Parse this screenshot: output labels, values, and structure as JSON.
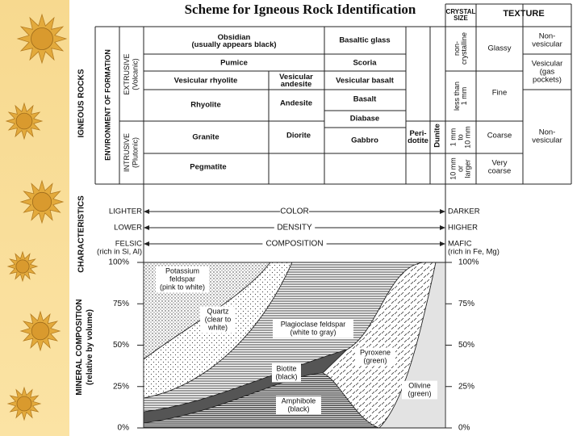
{
  "title": "Scheme for Igneous Rock Identification",
  "side_labels": {
    "igneous_rocks": "IGNEOUS ROCKS",
    "environment": "ENVIRONMENT OF FORMATION",
    "extrusive": [
      "EXTRUSIVE",
      "(Volcanic)"
    ],
    "intrusive": [
      "INTRUSIVE",
      "(Plutonic)"
    ],
    "characteristics": "CHARACTERISTICS",
    "mineral_composition": [
      "MINERAL COMPOSITION",
      "(relative by volume)"
    ]
  },
  "headers": {
    "crystal_size": [
      "CRYSTAL",
      "SIZE"
    ],
    "texture": "TEXTURE"
  },
  "rocks": {
    "obsidian": [
      "Obsidian",
      "(usually appears black)"
    ],
    "basaltic_glass": "Basaltic glass",
    "pumice": "Pumice",
    "scoria": "Scoria",
    "vesicular_rhyolite": "Vesicular rhyolite",
    "vesicular_andesite": [
      "Vesicular",
      "andesite"
    ],
    "vesicular_basalt": "Vesicular basalt",
    "rhyolite": "Rhyolite",
    "andesite": "Andesite",
    "basalt": "Basalt",
    "diabase": "Diabase",
    "granite": "Granite",
    "diorite": "Diorite",
    "gabbro": "Gabbro",
    "peridotite": [
      "Peri-",
      "dotite"
    ],
    "dunite": "Dunite",
    "pegmatite": "Pegmatite"
  },
  "crystal_sizes": [
    [
      "non-",
      "crystalline"
    ],
    [
      "less than",
      "1 mm"
    ],
    [
      "1 mm",
      "to",
      "10 mm"
    ],
    [
      "10 mm",
      "or",
      "larger"
    ]
  ],
  "textures": [
    "Glassy",
    "Fine",
    "Coarse",
    [
      "Very",
      "coarse"
    ]
  ],
  "vesicularity": [
    [
      "Non-",
      "vesicular"
    ],
    [
      "Vesicular",
      "(gas",
      "pockets)"
    ],
    [
      "Non-",
      "vesicular"
    ]
  ],
  "characteristics": [
    {
      "left": [
        "LIGHTER"
      ],
      "middle": "COLOR",
      "right": [
        "DARKER"
      ]
    },
    {
      "left": [
        "LOWER"
      ],
      "middle": "DENSITY",
      "right": [
        "HIGHER"
      ]
    },
    {
      "left": [
        "FELSIC",
        "(rich in Si, Al)"
      ],
      "middle": "COMPOSITION",
      "right": [
        "MAFIC",
        "(rich in Fe, Mg)"
      ]
    }
  ],
  "percent_labels": [
    "100%",
    "75%",
    "50%",
    "25%",
    "0%"
  ],
  "minerals": {
    "potassium_feldspar": [
      "Potassium",
      "feldspar",
      "(pink to white)"
    ],
    "quartz": [
      "Quartz",
      "(clear to",
      "white)"
    ],
    "plagioclase": [
      "Plagioclase feldspar",
      "(white to gray)"
    ],
    "biotite": [
      "Biotite",
      "(black)"
    ],
    "amphibole": [
      "Amphibole",
      "(black)"
    ],
    "pyroxene": [
      "Pyroxene",
      "(green)"
    ],
    "olivine": [
      "Olivine",
      "(green)"
    ]
  }
}
